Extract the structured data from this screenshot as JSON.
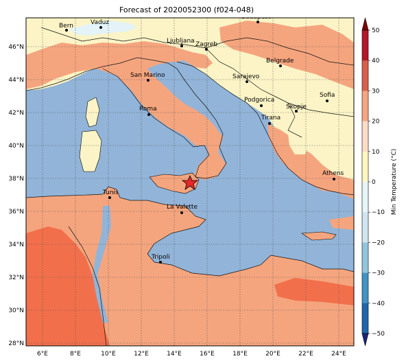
{
  "title": "Forecast of 2020052300 (f024-048)",
  "x_ticks": [
    "6°E",
    "8°E",
    "10°E",
    "12°E",
    "14°E",
    "16°E",
    "18°E",
    "20°E",
    "22°E",
    "24°E"
  ],
  "y_ticks": [
    "28°N",
    "30°N",
    "32°N",
    "34°N",
    "36°N",
    "38°N",
    "40°N",
    "42°N",
    "44°N",
    "46°N"
  ],
  "colorbar": {
    "label": "Min Temperature (°C)",
    "ticks": [
      "50",
      "40",
      "30",
      "20",
      "10",
      "0",
      "−10",
      "−20",
      "−30",
      "−40",
      "−50"
    ],
    "colors": [
      "#7f0000",
      "#b2182b",
      "#d6604d",
      "#f4a582",
      "#fddbc7",
      "#fff7c0",
      "#e6f5f8",
      "#d1e5f0",
      "#92c5de",
      "#4393c3",
      "#2166ac",
      "#1a237e"
    ]
  },
  "cities": [
    {
      "name": "Bern"
    },
    {
      "name": "Vaduz"
    },
    {
      "name": "Budapest"
    },
    {
      "name": "Ljubljana"
    },
    {
      "name": "Zagreb"
    },
    {
      "name": "Belgrade"
    },
    {
      "name": "San Marino"
    },
    {
      "name": "Sarajevo"
    },
    {
      "name": "Sofia"
    },
    {
      "name": "Podgorica"
    },
    {
      "name": "Skopje"
    },
    {
      "name": "Roma"
    },
    {
      "name": "Tirana"
    },
    {
      "name": "Athens"
    },
    {
      "name": "Tunis"
    },
    {
      "name": "La Valette"
    },
    {
      "name": "Tripoli"
    }
  ],
  "colors": {
    "sea": "#92b4d8",
    "cold_land": "#fcf4c6",
    "warm_land": "#f5a57e",
    "hot_land": "#f26f4c",
    "alps_cold": "#e3f3f8",
    "marker": "#e8262a"
  }
}
